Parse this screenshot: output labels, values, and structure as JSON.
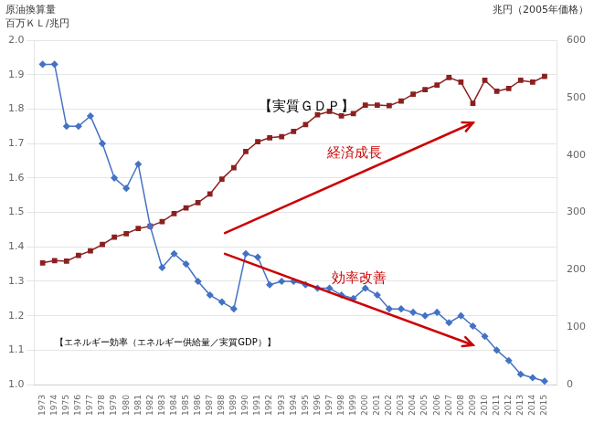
{
  "chart_data": {
    "type": "line",
    "x": [
      1973,
      1974,
      1975,
      1976,
      1977,
      1978,
      1979,
      1980,
      1981,
      1982,
      1983,
      1984,
      1985,
      1986,
      1987,
      1988,
      1989,
      1990,
      1991,
      1992,
      1993,
      1994,
      1995,
      1996,
      1997,
      1998,
      1999,
      2000,
      2001,
      2002,
      2003,
      2004,
      2005,
      2006,
      2007,
      2008,
      2009,
      2010,
      2011,
      2012,
      2013,
      2014,
      2015
    ],
    "series": [
      {
        "color": "#4472C4",
        "marker": "diamond",
        "axis": "y",
        "values": [
          1.93,
          1.93,
          1.75,
          1.75,
          1.78,
          1.7,
          1.6,
          1.57,
          1.64,
          1.46,
          1.34,
          1.38,
          1.35,
          1.3,
          1.26,
          1.24,
          1.22,
          1.38,
          1.37,
          1.29,
          1.3,
          1.3,
          1.29,
          1.28,
          1.28,
          1.26,
          1.25,
          1.28,
          1.26,
          1.22,
          1.22,
          1.21,
          1.2,
          1.21,
          1.18,
          1.2,
          1.17,
          1.14,
          1.1,
          1.07,
          1.03,
          1.02,
          1.01
        ]
      },
      {
        "color": "#8B2020",
        "marker": "square",
        "axis": "y2",
        "values": [
          212,
          216,
          215,
          225,
          233,
          244,
          257,
          263,
          272,
          276,
          284,
          298,
          308,
          317,
          332,
          358,
          378,
          406,
          423,
          430,
          432,
          441,
          453,
          470,
          476,
          468,
          472,
          487,
          487,
          486,
          494,
          506,
          514,
          522,
          535,
          527,
          490,
          530,
          511,
          516,
          530,
          527,
          537
        ]
      }
    ],
    "xlim": [
      1972.3,
      2016.0
    ],
    "xticks": [
      1973,
      1974,
      1975,
      1976,
      1977,
      1978,
      1979,
      1980,
      1981,
      1982,
      1983,
      1984,
      1985,
      1986,
      1987,
      1988,
      1989,
      1990,
      1991,
      1992,
      1993,
      1994,
      1995,
      1996,
      1997,
      1998,
      1999,
      2000,
      2001,
      2002,
      2003,
      2004,
      2005,
      2006,
      2007,
      2008,
      2009,
      2010,
      2011,
      2012,
      2013,
      2014,
      2015
    ],
    "ylim": [
      1.0,
      2.0
    ],
    "yticks": [
      {
        "value": 1.0,
        "label": "1.0"
      },
      1.1,
      1.2,
      1.3,
      1.4,
      1.5,
      1.6,
      1.7,
      1.8,
      1.9,
      {
        "value": 2.0,
        "label": "2.0"
      }
    ],
    "y2lim": [
      0,
      600
    ],
    "y2ticks": [
      0,
      100,
      200,
      300,
      400,
      500,
      600
    ],
    "ylabel": [
      "原油換算量",
      "百万ＫＬ/兆円"
    ],
    "y2label": "兆円（2005年価格）",
    "grid": true,
    "annotations": [
      {
        "text": "【実質ＧＤＰ】"
      },
      {
        "text": "【エネルギー効率（エネルギー供給量／実質GDP）】"
      },
      {
        "text": "経済成長",
        "color": "#CC0000"
      },
      {
        "text": "効率改善",
        "color": "#CC0000"
      }
    ]
  }
}
